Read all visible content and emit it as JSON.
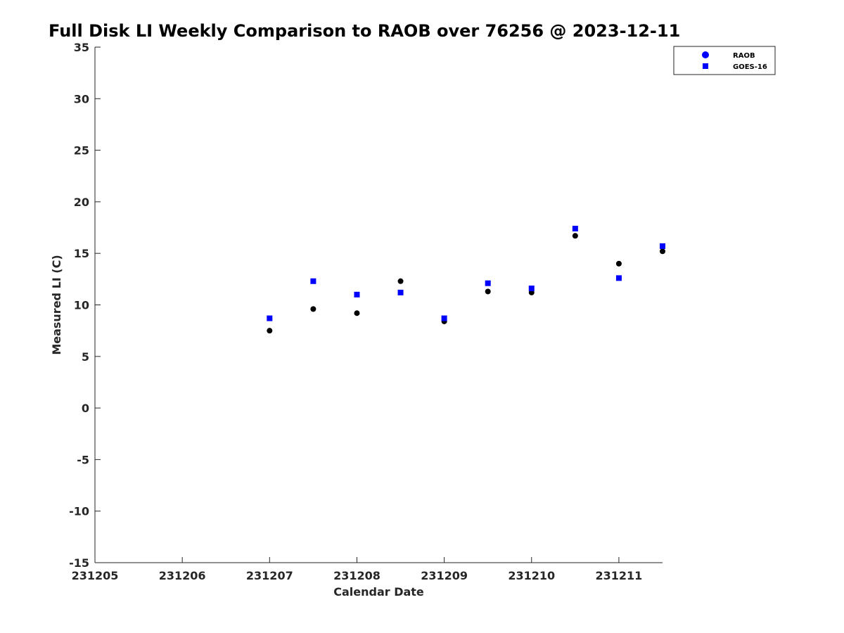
{
  "chart_data": {
    "type": "scatter",
    "title": "Full Disk LI Weekly Comparison to RAOB over 76256 @ 2023-12-11",
    "xlabel": "Calendar Date",
    "ylabel": "Measured LI (C)",
    "x_ticks": [
      "231205",
      "231206",
      "231207",
      "231208",
      "231209",
      "231210",
      "231211"
    ],
    "xlim": [
      "231205",
      "231211 12:00"
    ],
    "ylim": [
      -15,
      35
    ],
    "y_ticks": [
      -15,
      -10,
      -5,
      0,
      5,
      10,
      15,
      20,
      25,
      30,
      35
    ],
    "grid": false,
    "legend_position": "top-right",
    "series": [
      {
        "name": "RAOB",
        "marker": "circle",
        "color": "#000000",
        "legend_color": "#0000ff",
        "points": [
          {
            "x": "231207 00:00",
            "y": 7.5
          },
          {
            "x": "231207 12:00",
            "y": 9.6
          },
          {
            "x": "231208 00:00",
            "y": 9.2
          },
          {
            "x": "231208 12:00",
            "y": 12.3
          },
          {
            "x": "231209 00:00",
            "y": 8.4
          },
          {
            "x": "231209 12:00",
            "y": 11.3
          },
          {
            "x": "231210 00:00",
            "y": 11.2
          },
          {
            "x": "231210 12:00",
            "y": 16.7
          },
          {
            "x": "231211 00:00",
            "y": 14.0
          },
          {
            "x": "231211 12:00",
            "y": 15.2
          }
        ]
      },
      {
        "name": "GOES-16",
        "marker": "square",
        "color": "#0000ff",
        "points": [
          {
            "x": "231207 00:00",
            "y": 8.7
          },
          {
            "x": "231207 12:00",
            "y": 12.3
          },
          {
            "x": "231208 00:00",
            "y": 11.0
          },
          {
            "x": "231208 12:00",
            "y": 11.2
          },
          {
            "x": "231209 00:00",
            "y": 8.7
          },
          {
            "x": "231209 12:00",
            "y": 12.1
          },
          {
            "x": "231210 00:00",
            "y": 11.6
          },
          {
            "x": "231210 12:00",
            "y": 17.4
          },
          {
            "x": "231211 00:00",
            "y": 12.6
          },
          {
            "x": "231211 12:00",
            "y": 15.7
          }
        ]
      }
    ]
  }
}
